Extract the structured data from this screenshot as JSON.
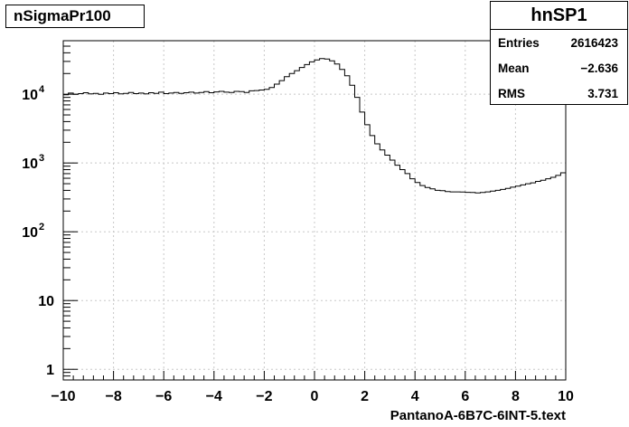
{
  "chart_data": {
    "type": "histogram",
    "title": "nSigmaPr100",
    "xlabel": "PantanoA-6B7C-6INT-5.text",
    "ylabel": "",
    "yscale": "log",
    "xlim": [
      -10,
      10
    ],
    "ylim": [
      0.7,
      60000
    ],
    "grid": true,
    "x_ticks": [
      -10,
      -8,
      -6,
      -4,
      -2,
      0,
      2,
      4,
      6,
      8,
      10
    ],
    "x_tick_labels": [
      "−10",
      "−8",
      "−6",
      "−4",
      "−2",
      "0",
      "2",
      "4",
      "6",
      "8",
      "10"
    ],
    "y_ticks": [
      1,
      10,
      100,
      1000,
      10000
    ],
    "bin_width": 0.2,
    "bin_centers": [
      -9.9,
      -9.7,
      -9.5,
      -9.3,
      -9.1,
      -8.9,
      -8.7,
      -8.5,
      -8.3,
      -8.1,
      -7.9,
      -7.7,
      -7.5,
      -7.3,
      -7.1,
      -6.9,
      -6.7,
      -6.5,
      -6.3,
      -6.1,
      -5.9,
      -5.7,
      -5.5,
      -5.3,
      -5.1,
      -4.9,
      -4.7,
      -4.5,
      -4.3,
      -4.1,
      -3.9,
      -3.7,
      -3.5,
      -3.3,
      -3.1,
      -2.9,
      -2.7,
      -2.5,
      -2.3,
      -2.1,
      -1.9,
      -1.7,
      -1.5,
      -1.3,
      -1.1,
      -0.9,
      -0.7,
      -0.5,
      -0.3,
      -0.1,
      0.1,
      0.3,
      0.5,
      0.7,
      0.9,
      1.1,
      1.3,
      1.5,
      1.7,
      1.9,
      2.1,
      2.3,
      2.5,
      2.7,
      2.9,
      3.1,
      3.3,
      3.5,
      3.7,
      3.9,
      4.1,
      4.3,
      4.5,
      4.7,
      4.9,
      5.1,
      5.3,
      5.5,
      5.7,
      5.9,
      6.1,
      6.3,
      6.5,
      6.7,
      6.9,
      7.1,
      7.3,
      7.5,
      7.7,
      7.9,
      8.1,
      8.3,
      8.5,
      8.7,
      8.9,
      9.1,
      9.3,
      9.5,
      9.7,
      9.9
    ],
    "values": [
      9800,
      10400,
      10000,
      10200,
      10500,
      10100,
      10300,
      10000,
      10400,
      10200,
      10500,
      10100,
      10300,
      10600,
      10200,
      10400,
      10100,
      10500,
      10300,
      10700,
      10200,
      10400,
      10600,
      10300,
      10500,
      10700,
      10400,
      10600,
      10900,
      10500,
      10800,
      11000,
      10700,
      10600,
      11000,
      10900,
      10600,
      11200,
      11300,
      11500,
      11800,
      12500,
      14000,
      15800,
      18000,
      20000,
      22000,
      24500,
      27000,
      29500,
      31500,
      33000,
      32500,
      30500,
      27500,
      23000,
      18500,
      13500,
      9000,
      5500,
      3600,
      2500,
      1900,
      1550,
      1300,
      1100,
      930,
      800,
      700,
      590,
      520,
      470,
      440,
      420,
      400,
      395,
      385,
      380,
      380,
      378,
      375,
      372,
      368,
      372,
      380,
      390,
      400,
      412,
      428,
      445,
      460,
      480,
      500,
      515,
      540,
      560,
      590,
      620,
      660,
      720
    ]
  },
  "stats_box": {
    "name": "hnSP1",
    "rows": [
      {
        "label": "Entries",
        "value": "2616423"
      },
      {
        "label": "Mean",
        "value": "−2.636"
      },
      {
        "label": "RMS",
        "value": "3.731"
      }
    ]
  }
}
